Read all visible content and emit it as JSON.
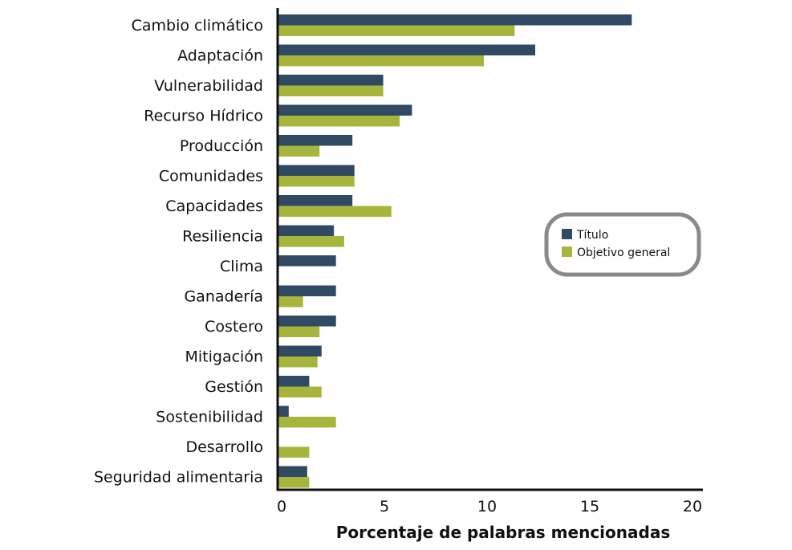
{
  "chart_data": {
    "type": "bar",
    "orientation": "horizontal",
    "title": "",
    "xlabel": "Porcentaje de palabras mencionadas",
    "ylabel": "",
    "xlim": [
      0,
      20
    ],
    "xticks": [
      "0",
      "5",
      "10",
      "15",
      "20"
    ],
    "grid": false,
    "legend_position": "right",
    "categories": [
      "Cambio climático",
      "Adaptación",
      "Vulnerabilidad",
      "Recurso Hídrico",
      "Producción",
      "Comunidades",
      "Capacidades",
      "Resiliencia",
      "Clima",
      "Ganadería",
      "Costero",
      "Mitigación",
      "Gestión",
      "Sostenibilidad",
      "Desarrollo",
      "Seguridad alimentaria"
    ],
    "series": [
      {
        "name": "Título",
        "color": "#2f4a62",
        "values": [
          17.2,
          12.5,
          5.1,
          6.5,
          3.6,
          3.7,
          3.6,
          2.7,
          2.8,
          2.8,
          2.8,
          2.1,
          1.5,
          0.5,
          0,
          1.4
        ]
      },
      {
        "name": "Objetivo general",
        "color": "#a7b53d",
        "values": [
          11.5,
          10.0,
          5.1,
          5.9,
          2.0,
          3.7,
          5.5,
          3.2,
          0,
          1.2,
          2.0,
          1.9,
          2.1,
          2.8,
          1.5,
          1.5
        ]
      }
    ]
  }
}
